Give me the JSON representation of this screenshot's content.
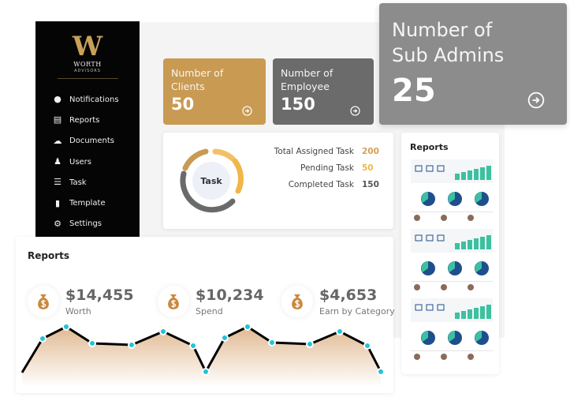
{
  "brand": {
    "logo_letter": "W",
    "name": "WORTH",
    "tagline": "ADVISORS",
    "accent": "#c99a52"
  },
  "sidebar": {
    "items": [
      {
        "label": "Notifications",
        "icon": "bell-icon"
      },
      {
        "label": "Reports",
        "icon": "report-icon"
      },
      {
        "label": "Documents",
        "icon": "cloud-upload-icon"
      },
      {
        "label": "Users",
        "icon": "user-icon"
      },
      {
        "label": "Task",
        "icon": "checklist-icon"
      },
      {
        "label": "Template",
        "icon": "file-icon"
      },
      {
        "label": "Settings",
        "icon": "gear-icon"
      }
    ]
  },
  "stats": {
    "clients": {
      "title1": "Number of",
      "title2": "Clients",
      "value": "50",
      "color": "#c99a52"
    },
    "employee": {
      "title1": "Number of",
      "title2": "Employee",
      "value": "150",
      "color": "#6b6b6b"
    },
    "subadmins": {
      "title1": "Number of",
      "title2": "Sub Admins",
      "value": "25",
      "color": "#8c8c8c"
    }
  },
  "task": {
    "center_label": "Task",
    "rows": [
      {
        "label": "Total Assigned Task",
        "value": "200",
        "color": "#d4a055"
      },
      {
        "label": "Pending Task",
        "value": "50",
        "color": "#f0b64a"
      },
      {
        "label": "Completed Task",
        "value": "150",
        "color": "#555555"
      }
    ]
  },
  "reports_preview": {
    "title": "Reports"
  },
  "reports": {
    "title": "Reports",
    "items": [
      {
        "value": "$14,455",
        "label": "Worth"
      },
      {
        "value": "$10,234",
        "label": "Spend"
      },
      {
        "value": "$4,653",
        "label": "Earn by Category"
      }
    ]
  },
  "chart_data": {
    "type": "area",
    "values": [
      14,
      57,
      72,
      51,
      49,
      66,
      48,
      15,
      58,
      72,
      52,
      50,
      66,
      48,
      15
    ],
    "line_color": "#000000",
    "point_color": "#22c3d6",
    "fill_color": "#d9a877"
  }
}
